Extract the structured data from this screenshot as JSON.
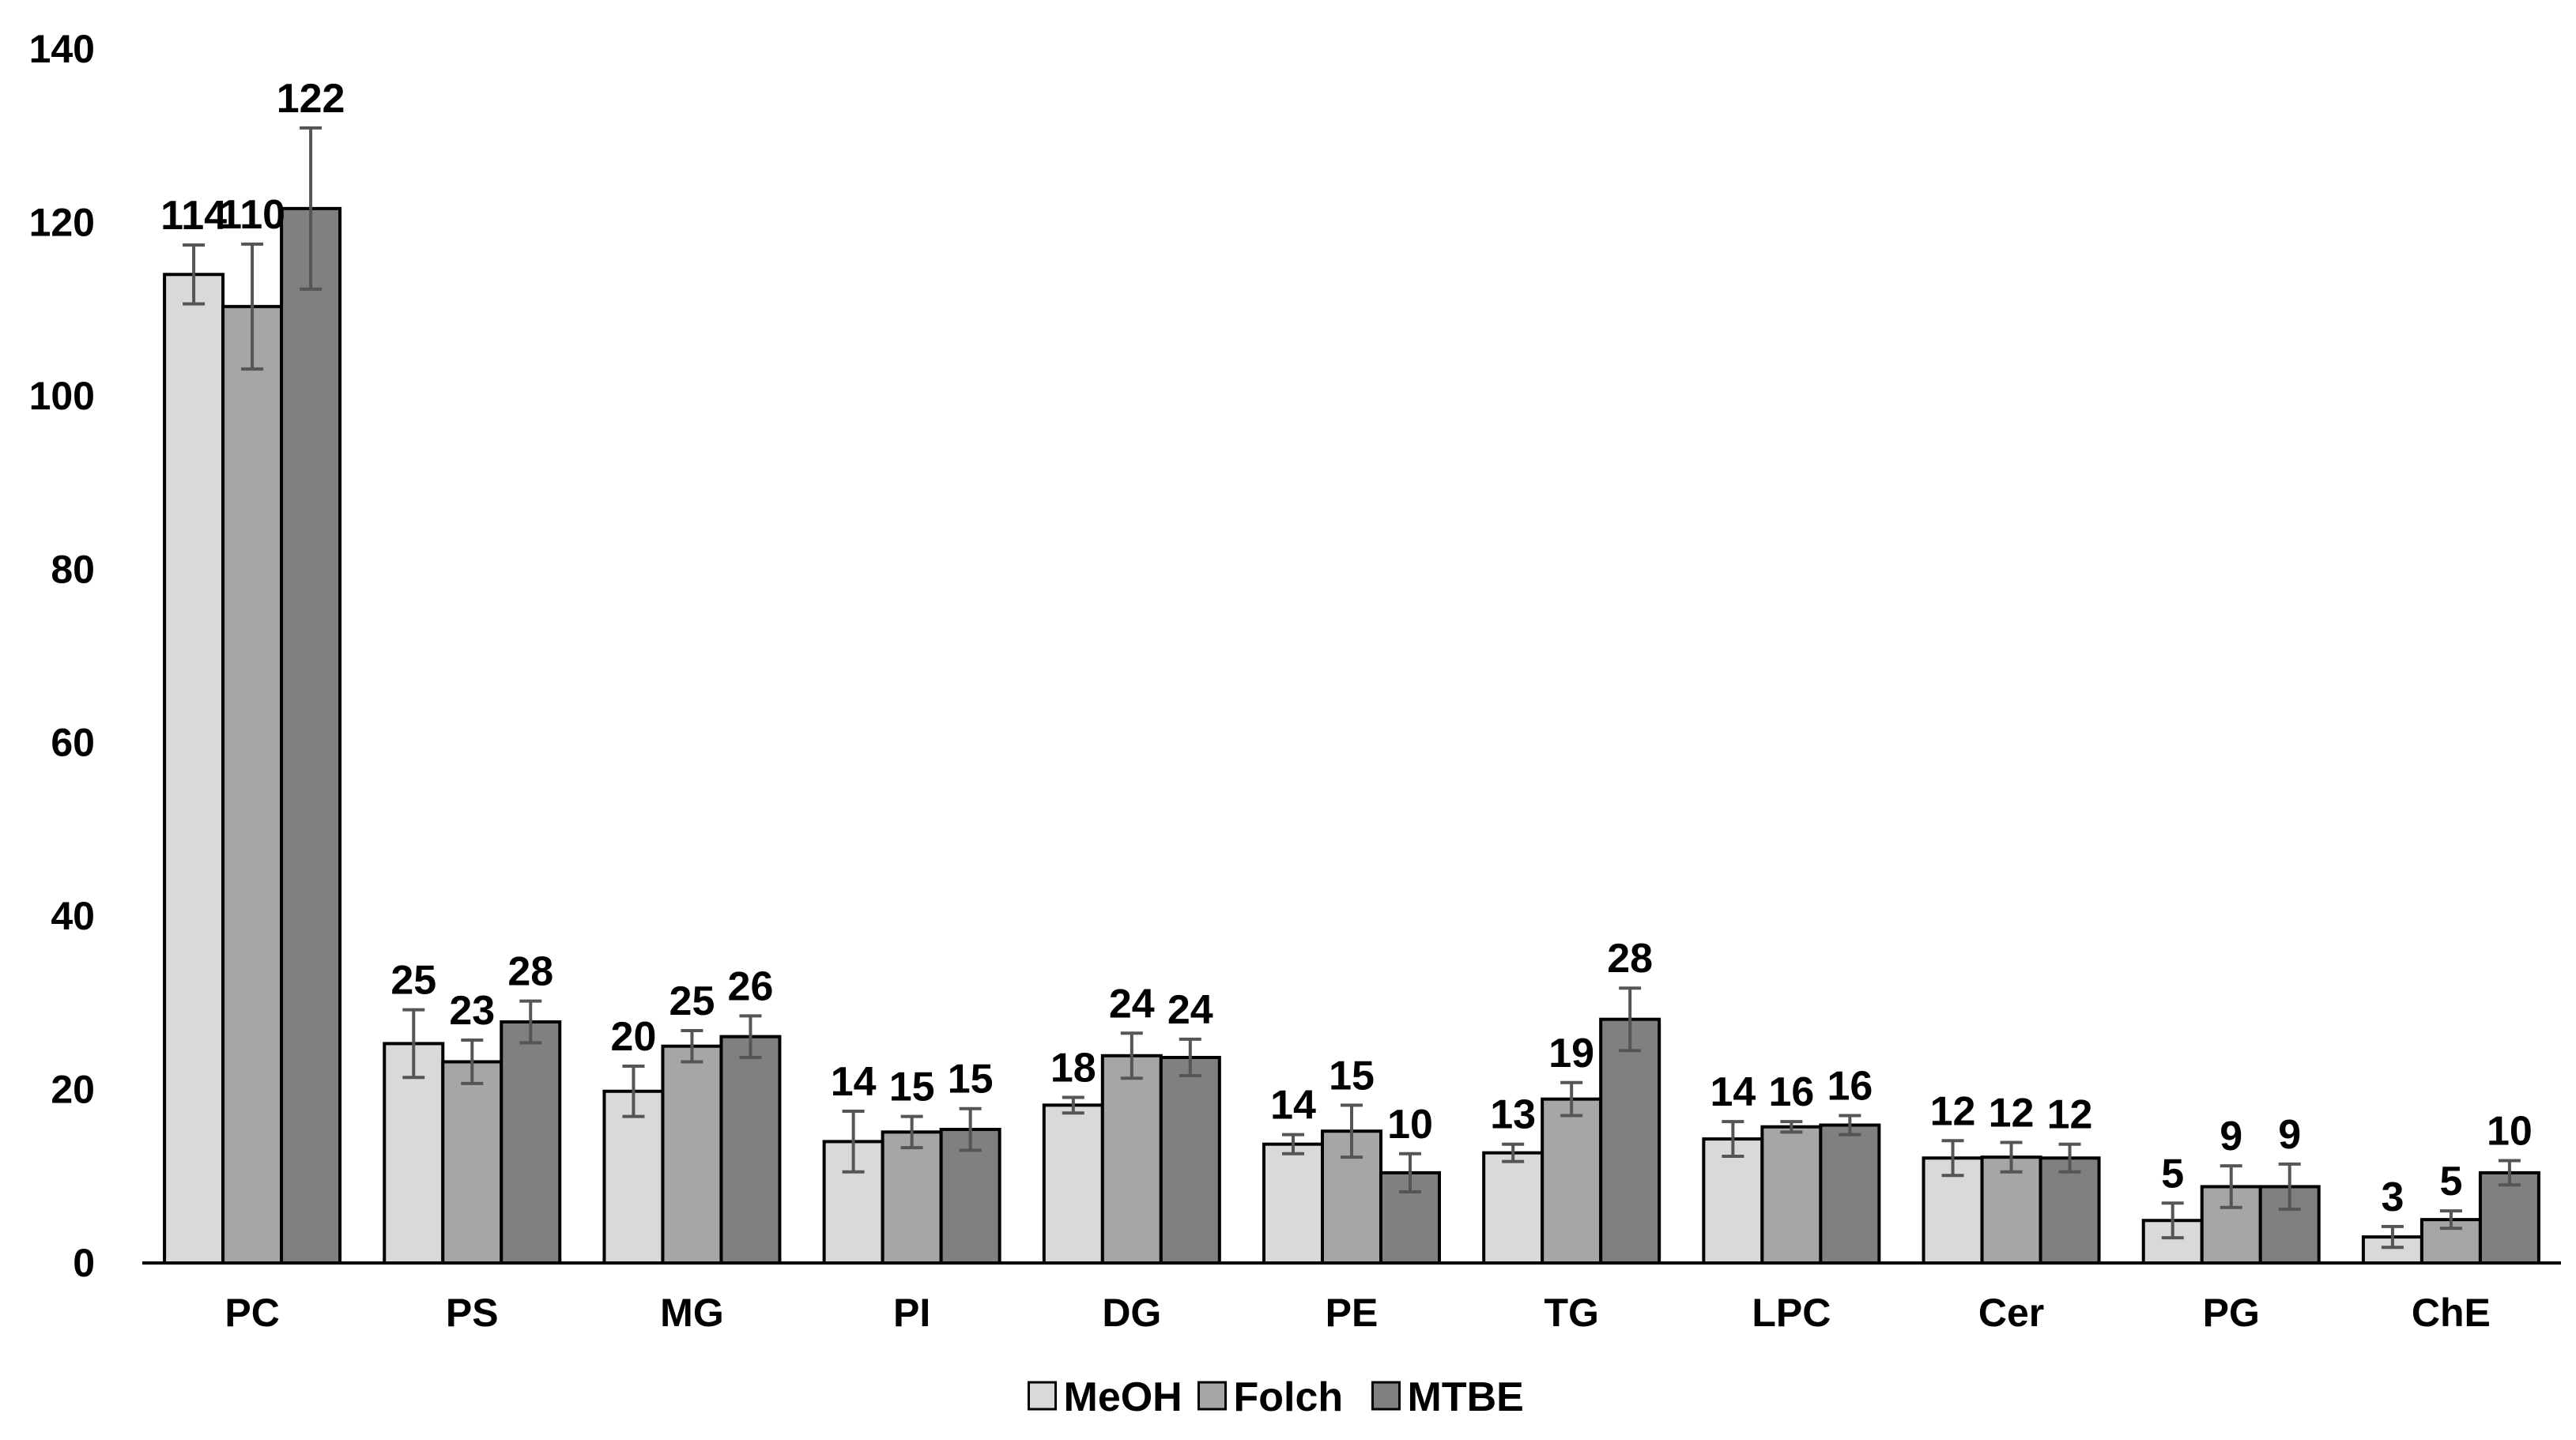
{
  "chart_data": {
    "type": "bar",
    "title": "",
    "xlabel": "",
    "ylabel": "",
    "ylim": [
      0,
      140
    ],
    "yticks": [
      0,
      20,
      40,
      60,
      80,
      100,
      120,
      140
    ],
    "grid": false,
    "legend_position": "bottom-center",
    "categories": [
      "PC",
      "PS",
      "MG",
      "PI",
      "DG",
      "PE",
      "TG",
      "LPC",
      "Cer",
      "PG",
      "ChE"
    ],
    "series": [
      {
        "name": "MeOH",
        "color": "#d9d9d9",
        "values": [
          114,
          25,
          20,
          14,
          18,
          14,
          13,
          14,
          12,
          5,
          3
        ],
        "plot_values": [
          114,
          25.3,
          19.8,
          14,
          18.2,
          13.7,
          12.7,
          14.3,
          12.1,
          4.9,
          3
        ],
        "errors": [
          3.4,
          3.9,
          2.9,
          3.5,
          0.9,
          1.1,
          1,
          2,
          2,
          2,
          1.2
        ]
      },
      {
        "name": "Folch",
        "color": "#a6a6a6",
        "values": [
          110,
          23,
          25,
          15,
          24,
          15,
          19,
          16,
          12,
          9,
          5
        ],
        "plot_values": [
          110.3,
          23.2,
          25,
          15.1,
          23.9,
          15.2,
          18.9,
          15.7,
          12.2,
          8.8,
          5
        ],
        "errors": [
          7.2,
          2.5,
          1.8,
          1.8,
          2.6,
          3,
          1.9,
          0.6,
          1.7,
          2.4,
          1
        ]
      },
      {
        "name": "MTBE",
        "color": "#808080",
        "values": [
          122,
          28,
          26,
          15,
          24,
          10,
          28,
          16,
          12,
          9,
          10
        ],
        "plot_values": [
          121.6,
          27.8,
          26.1,
          15.4,
          23.7,
          10.4,
          28.1,
          15.9,
          12.1,
          8.8,
          10.4
        ],
        "errors": [
          9.3,
          2.4,
          2.4,
          2.4,
          2.1,
          2.2,
          3.6,
          1.1,
          1.6,
          2.6,
          1.4
        ]
      }
    ]
  }
}
